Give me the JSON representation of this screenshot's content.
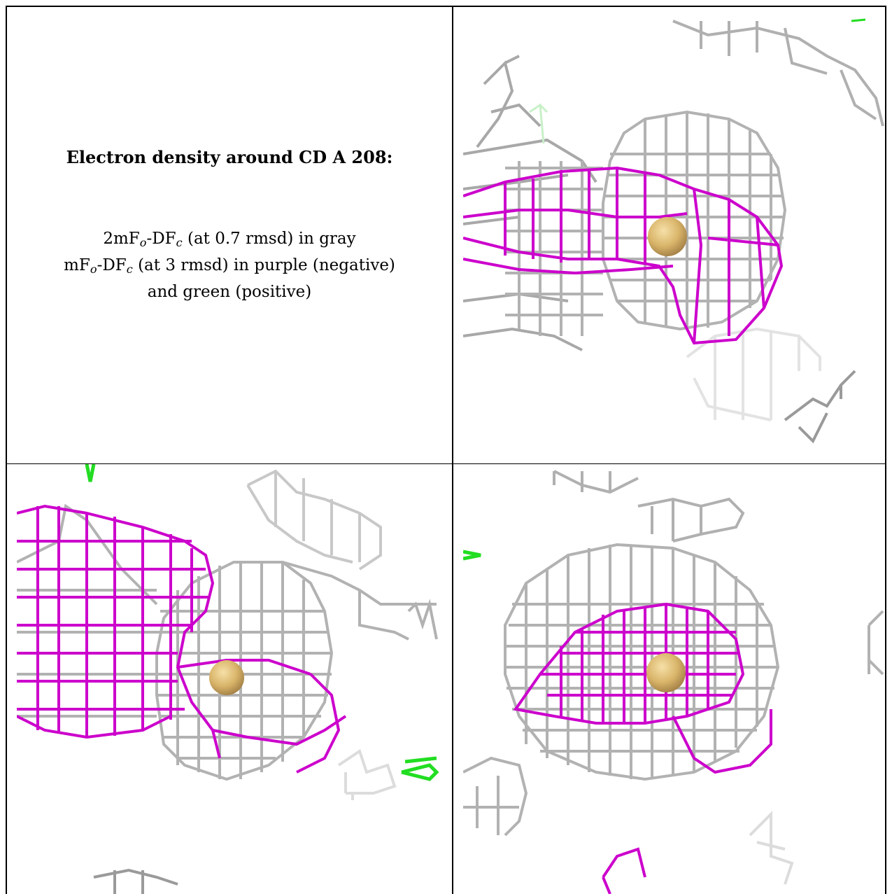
{
  "title": "Electron density around CD A 208:",
  "legend": {
    "line1": {
      "pre": "2mF",
      "sub1": "o",
      "mid": "-DF",
      "sub2": "c",
      "post": " (at 0.7 rmsd) in gray"
    },
    "line2": {
      "pre": "mF",
      "sub1": "o",
      "mid": "-DF",
      "sub2": "c",
      "post": " (at 3 rmsd) in purple (negative)"
    },
    "line3": "and green (positive)"
  },
  "colors": {
    "map_2fofc": "#b0b0b0",
    "map_fofc_negative": "#cc00cc",
    "map_fofc_positive": "#22dd22",
    "atom": "#d9b56a"
  },
  "panels": [
    {
      "name": "view-1"
    },
    {
      "name": "view-2"
    },
    {
      "name": "view-3"
    }
  ]
}
